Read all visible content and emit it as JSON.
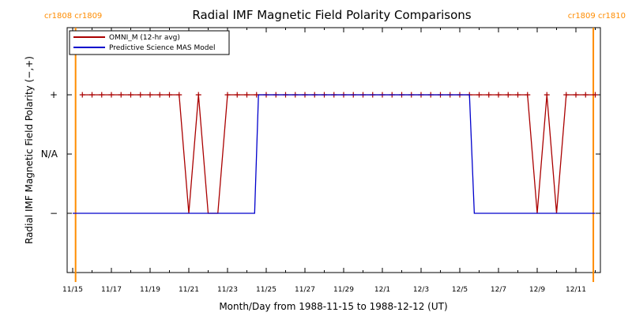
{
  "chart_data": {
    "type": "line",
    "title": "Radial IMF Magnetic Field Polarity Comparisons",
    "xlabel": "Month/Day from 1988-11-15 to 1988-12-12 (UT)",
    "ylabel": "Radial IMF Magnetic Field Polarity (−,+)",
    "x_range_days": [
      0,
      27
    ],
    "y_categories": [
      "−",
      "N/A",
      "+"
    ],
    "y_values_meaning": {
      "-1": "−",
      "0": "N/A",
      "1": "+"
    },
    "xtick_labels": [
      "11/15",
      "11/17",
      "11/19",
      "11/21",
      "11/23",
      "11/25",
      "11/27",
      "11/29",
      "12/1",
      "12/3",
      "12/5",
      "12/7",
      "12/9",
      "12/11"
    ],
    "cr_markers": [
      {
        "label": "cr1808 cr1809",
        "x_day": 0.15
      },
      {
        "label": "cr1809 cr1810",
        "x_day": 26.9
      }
    ],
    "legend": {
      "placement": "top-left",
      "entries": [
        {
          "label": "OMNI_M (12-hr avg)",
          "color": "#aa0000"
        },
        {
          "label": "Predictive Science MAS Model",
          "color": "#0000cc"
        }
      ]
    },
    "series": [
      {
        "name": "OMNI_M (12-hr avg)",
        "color": "#aa0000",
        "markers": true,
        "points": [
          [
            0.5,
            1
          ],
          [
            1.0,
            1
          ],
          [
            1.5,
            1
          ],
          [
            2.0,
            1
          ],
          [
            2.5,
            1
          ],
          [
            3.0,
            1
          ],
          [
            3.5,
            1
          ],
          [
            4.0,
            1
          ],
          [
            4.5,
            1
          ],
          [
            5.0,
            1
          ],
          [
            5.5,
            1
          ],
          [
            6.0,
            -1
          ],
          [
            6.5,
            1
          ],
          [
            7.0,
            -1
          ],
          [
            7.5,
            -1
          ],
          [
            8.0,
            1
          ],
          [
            8.5,
            1
          ],
          [
            9.0,
            1
          ],
          [
            9.5,
            1
          ],
          [
            10.0,
            1
          ],
          [
            10.5,
            1
          ],
          [
            11.0,
            1
          ],
          [
            11.5,
            1
          ],
          [
            12.0,
            1
          ],
          [
            12.5,
            1
          ],
          [
            13.0,
            1
          ],
          [
            13.5,
            1
          ],
          [
            14.0,
            1
          ],
          [
            14.5,
            1
          ],
          [
            15.0,
            1
          ],
          [
            15.5,
            1
          ],
          [
            16.0,
            1
          ],
          [
            16.5,
            1
          ],
          [
            17.0,
            1
          ],
          [
            17.5,
            1
          ],
          [
            18.0,
            1
          ],
          [
            18.5,
            1
          ],
          [
            19.0,
            1
          ],
          [
            19.5,
            1
          ],
          [
            20.0,
            1
          ],
          [
            20.5,
            1
          ],
          [
            21.0,
            1
          ],
          [
            21.5,
            1
          ],
          [
            22.0,
            1
          ],
          [
            22.5,
            1
          ],
          [
            23.0,
            1
          ],
          [
            23.5,
            1
          ],
          [
            24.0,
            -1
          ],
          [
            24.5,
            1
          ],
          [
            25.0,
            -1
          ],
          [
            25.5,
            1
          ],
          [
            26.0,
            1
          ],
          [
            26.5,
            1
          ],
          [
            27.0,
            1
          ]
        ]
      },
      {
        "name": "Predictive Science MAS Model",
        "color": "#0000cc",
        "markers": false,
        "points": [
          [
            0.0,
            -1
          ],
          [
            9.4,
            -1
          ],
          [
            9.6,
            1
          ],
          [
            20.5,
            1
          ],
          [
            20.75,
            -1
          ],
          [
            27.0,
            -1
          ]
        ]
      }
    ]
  }
}
